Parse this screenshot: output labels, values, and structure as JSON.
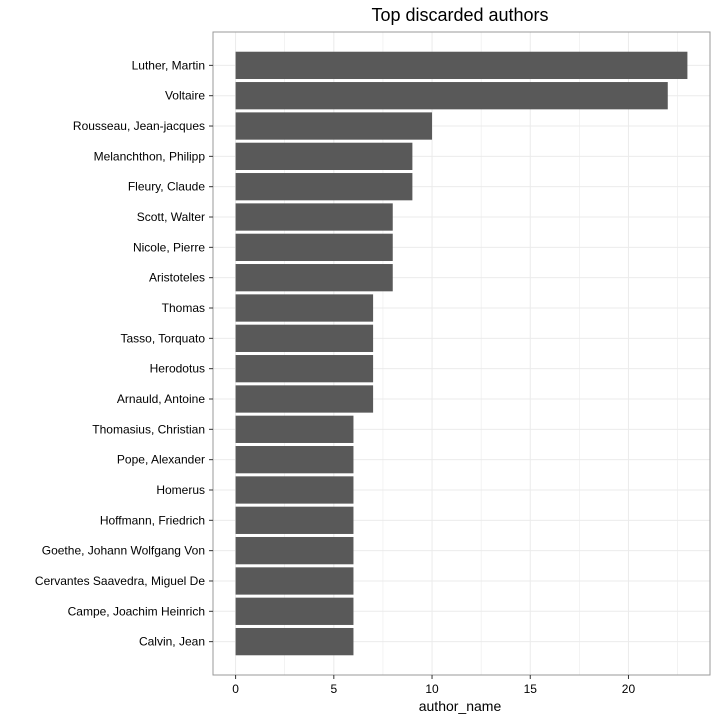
{
  "chart_data": {
    "type": "bar",
    "orientation": "horizontal",
    "title": "Top discarded authors",
    "xlabel": "author_name",
    "ylabel": "",
    "categories": [
      "Luther, Martin",
      "Voltaire",
      "Rousseau, Jean-jacques",
      "Melanchthon, Philipp",
      "Fleury, Claude",
      "Scott, Walter",
      "Nicole, Pierre",
      "Aristoteles",
      "Thomas",
      "Tasso, Torquato",
      "Herodotus",
      "Arnauld, Antoine",
      "Thomasius, Christian",
      "Pope, Alexander",
      "Homerus",
      "Hoffmann, Friedrich",
      "Goethe, Johann Wolfgang Von",
      "Cervantes Saavedra, Miguel De",
      "Campe, Joachim Heinrich",
      "Calvin, Jean"
    ],
    "values": [
      23,
      22,
      10,
      9,
      9,
      8,
      8,
      8,
      7,
      7,
      7,
      7,
      6,
      6,
      6,
      6,
      6,
      6,
      6,
      6
    ],
    "xlim": [
      -1.15,
      24.15
    ],
    "xticks": [
      0,
      5,
      10,
      15,
      20
    ],
    "grid": true,
    "bar_color": "#595959"
  }
}
